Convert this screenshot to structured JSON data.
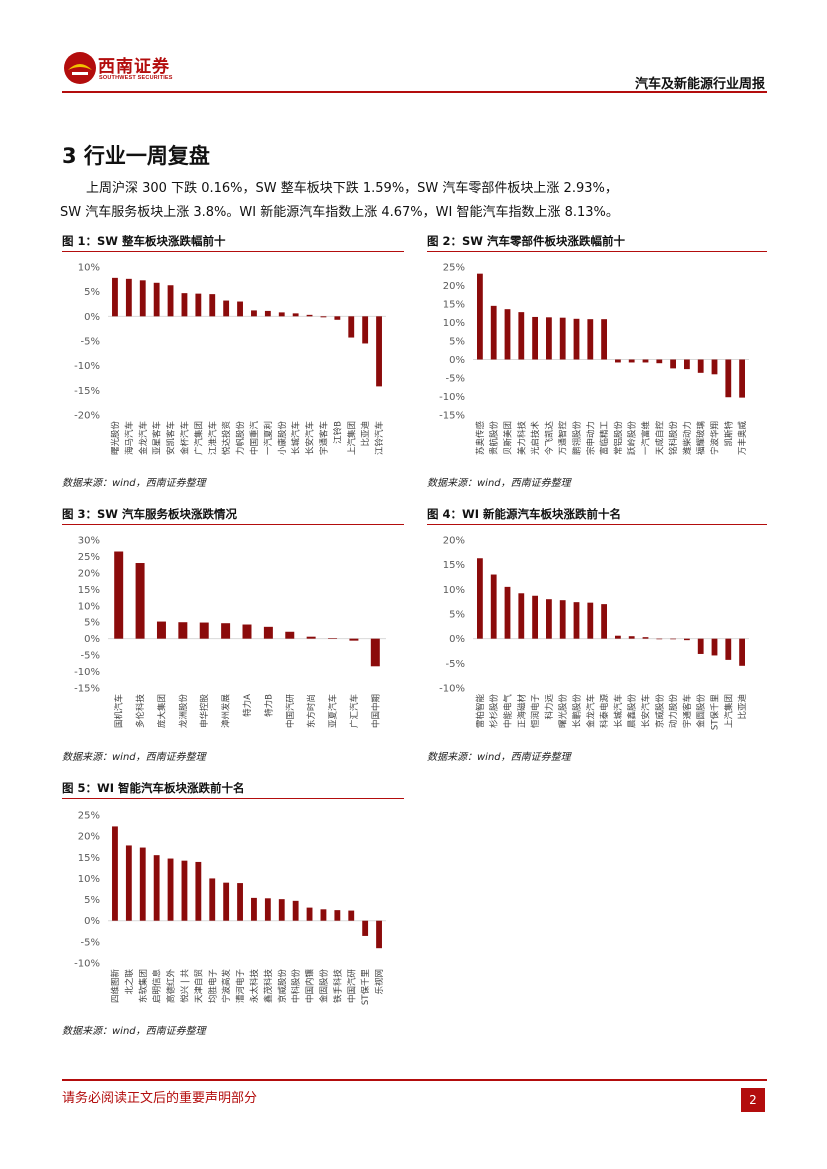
{
  "header": {
    "logo_cn": "西南证券",
    "logo_en": "SOUTHWEST SECURITIES",
    "report_title": "汽车及新能源行业周报"
  },
  "section": {
    "title": "3 行业一周复盘",
    "paragraph_line1": "上周沪深 300 下跌 0.16%，SW 整车板块下跌 1.59%，SW 汽车零部件板块上涨 2.93%，",
    "paragraph_line2": "SW 汽车服务板块上涨 3.8%。WI 新能源汽车指数上涨 4.67%，WI 智能汽车指数上涨 8.13%。"
  },
  "source_text": "数据来源：wind，西南证券整理",
  "colors": {
    "bar": "#8b0b0b",
    "accent": "#b30d0d",
    "axis": "#d9d9d9"
  },
  "figures": [
    {
      "title": "图 1：SW 整车板块涨跌幅前十"
    },
    {
      "title": "图 2：SW 汽车零部件板块涨跌幅前十"
    },
    {
      "title": "图 3：SW 汽车服务板块涨跌情况"
    },
    {
      "title": "图 4：WI 新能源汽车板块涨跌前十名"
    },
    {
      "title": "图 5：WI 智能汽车板块涨跌前十名"
    }
  ],
  "chart_data": [
    {
      "type": "bar",
      "title": "图 1：SW 整车板块涨跌幅前十",
      "categories": [
        "曙光股份",
        "海马汽车",
        "金龙汽车",
        "亚星客车",
        "安凯客车",
        "金杯汽车",
        "广汽集团",
        "江淮汽车",
        "悦达投资",
        "力帆股份",
        "中国重汽",
        "一汽夏利",
        "小康股份",
        "长城汽车",
        "长安汽车",
        "宇通客车",
        "江铃B",
        "上汽集团",
        "比亚迪",
        "江铃汽车"
      ],
      "values": [
        7.8,
        7.6,
        7.3,
        6.8,
        6.3,
        4.7,
        4.6,
        4.5,
        3.2,
        3.0,
        1.2,
        1.1,
        0.8,
        0.6,
        0.3,
        -0.2,
        -0.7,
        -4.3,
        -5.5,
        -14.2
      ],
      "ylim": [
        -20,
        10
      ],
      "yticks": [
        10,
        5,
        0,
        -5,
        -10,
        -15,
        -20
      ]
    },
    {
      "type": "bar",
      "title": "图 2：SW 汽车零部件板块涨跌幅前十",
      "categories": [
        "苏奥传感",
        "贵航股份",
        "贝斯美团",
        "美力科技",
        "光启技术",
        "今飞凯达",
        "万通智控",
        "鹏翎股份",
        "宗申动力",
        "富临精工",
        "常铝股份",
        "跃岭股份",
        "一汽富维",
        "天成自控",
        "铭科股份",
        "潍柴动力",
        "福耀玻璃",
        "宁波华翔",
        "凯斯特",
        "万丰奥威"
      ],
      "values": [
        23.2,
        14.5,
        13.6,
        12.8,
        11.5,
        11.4,
        11.3,
        11.0,
        10.9,
        10.9,
        -0.8,
        -0.8,
        -0.8,
        -1.0,
        -2.4,
        -2.6,
        -3.6,
        -4.0,
        -10.2,
        -10.3
      ],
      "ylim": [
        -15,
        25
      ],
      "yticks": [
        25,
        20,
        15,
        10,
        5,
        0,
        -5,
        -10,
        -15
      ]
    },
    {
      "type": "bar",
      "title": "图 3：SW 汽车服务板块涨跌情况",
      "categories": [
        "国机汽车",
        "多伦科技",
        "庞大集团",
        "龙洲股份",
        "申华控股",
        "漳州发展",
        "特力A",
        "特力B",
        "中国汽研",
        "东方时尚",
        "亚夏汽车",
        "广汇汽车",
        "中国中期"
      ],
      "values": [
        26.5,
        23.0,
        5.2,
        5.0,
        4.9,
        4.7,
        4.3,
        3.6,
        2.1,
        0.6,
        0.1,
        -0.6,
        -8.4
      ],
      "ylim": [
        -15,
        30
      ],
      "yticks": [
        30,
        25,
        20,
        15,
        10,
        5,
        0,
        -5,
        -10,
        -15
      ]
    },
    {
      "type": "bar",
      "title": "图 4：WI 新能源汽车板块涨跌前十名",
      "categories": [
        "雷柏智能",
        "杉杉股份",
        "中能电气",
        "正海磁材",
        "恒润电子",
        "科力远",
        "曙光股份",
        "长鹏股份",
        "金龙汽车",
        "科泰电源",
        "长城汽车",
        "晨鑫股份",
        "长安汽车",
        "京威股份",
        "动力股份",
        "宇通客车",
        "金圆股份",
        "ST保千里",
        "上汽集团",
        "比亚迪"
      ],
      "values": [
        16.3,
        13.0,
        10.5,
        9.2,
        8.7,
        8.0,
        7.8,
        7.4,
        7.3,
        7.0,
        0.6,
        0.5,
        0.3,
        0.0,
        0.0,
        -0.3,
        -3.1,
        -3.4,
        -4.3,
        -5.5
      ],
      "ylim": [
        -10,
        20
      ],
      "yticks": [
        20,
        15,
        10,
        5,
        0,
        -5,
        -10
      ]
    },
    {
      "type": "bar",
      "title": "图 5：WI 智能汽车板块涨跌前十名",
      "categories": [
        "四维图新",
        "北之联",
        "东软集团",
        "启明信息",
        "高德红外",
        "悦兴 | 共",
        "天津自贸",
        "均胜电子",
        "宁波高发",
        "漕河电子",
        "永太科技",
        "鑫茂科技",
        "京威股份",
        "中科股份",
        "中国内镶",
        "金固股份",
        "铁手科技",
        "中国汽研",
        "ST保千里",
        "乐视网"
      ],
      "values": [
        22.3,
        17.8,
        17.3,
        15.5,
        14.7,
        14.2,
        13.9,
        10.0,
        9.0,
        8.9,
        5.4,
        5.3,
        5.1,
        4.7,
        3.1,
        2.7,
        2.5,
        2.4,
        -3.6,
        -6.5
      ],
      "ylim": [
        -10,
        25
      ],
      "yticks": [
        25,
        20,
        15,
        10,
        5,
        0,
        -5,
        -10
      ]
    }
  ],
  "footer": {
    "note": "请务必阅读正文后的重要声明部分",
    "page_number": "2"
  }
}
